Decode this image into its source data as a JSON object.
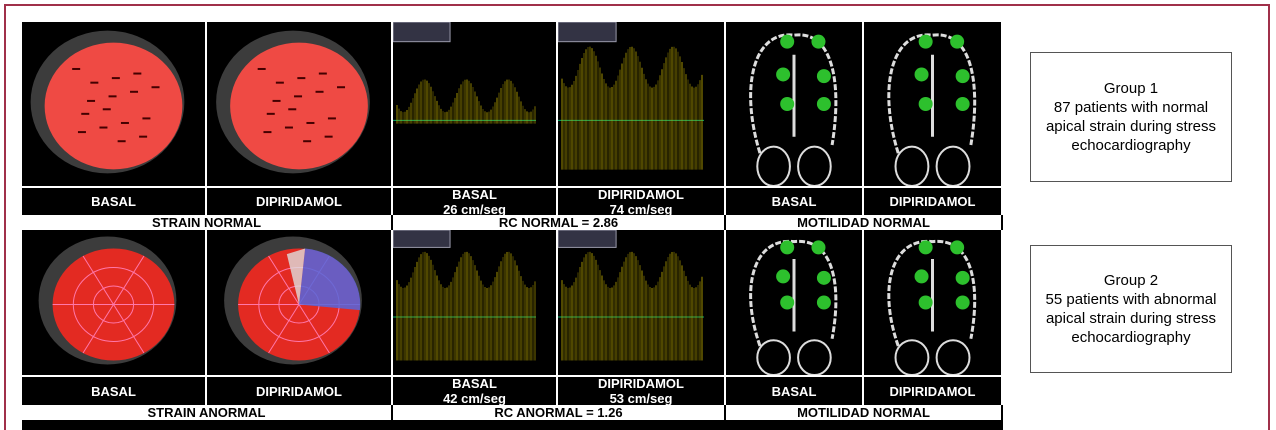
{
  "panels": [
    {
      "strain": {
        "caption": "STRAIN NORMAL",
        "labels": [
          "BASAL",
          "DIPIRIDAMOL"
        ]
      },
      "doppler": {
        "caption": "RC NORMAL = 2.86",
        "labels": [
          {
            "title": "BASAL",
            "velocity": "26 cm/seg"
          },
          {
            "title": "DIPIRIDAMOL",
            "velocity": "74 cm/seg"
          }
        ]
      },
      "motility": {
        "caption": "MOTILIDAD NORMAL",
        "labels": [
          "BASAL",
          "DIPIRIDAMOL"
        ]
      }
    },
    {
      "strain": {
        "caption": "STRAIN ANORMAL",
        "labels": [
          "BASAL",
          "DIPIRIDAMOL"
        ]
      },
      "doppler": {
        "caption": "RC ANORMAL = 1.26",
        "labels": [
          {
            "title": "BASAL",
            "velocity": "42 cm/seg"
          },
          {
            "title": "DIPIRIDAMOL",
            "velocity": "53 cm/seg"
          }
        ]
      },
      "motility": {
        "caption": "MOTILIDAD NORMAL",
        "labels": [
          "BASAL",
          "DIPIRIDAMOL"
        ]
      }
    }
  ],
  "groups": [
    {
      "title": "Group 1",
      "description": "87 patients with normal apical strain during stress echocardiography"
    },
    {
      "title": "Group 2",
      "description": "55 patients with abnormal apical strain during stress echocardiography"
    }
  ]
}
